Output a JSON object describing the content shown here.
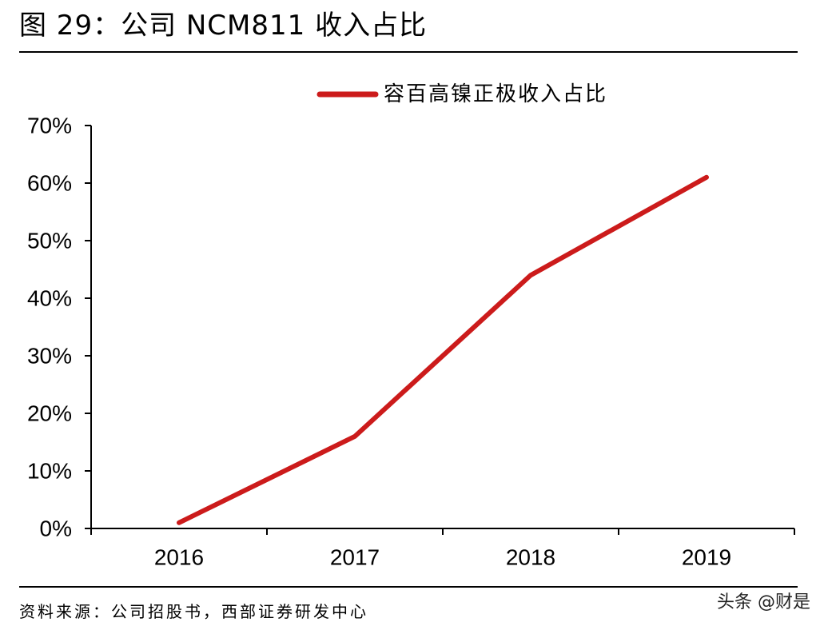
{
  "figure": {
    "title": "图 29：公司 NCM811 收入占比",
    "source": "资料来源：公司招股书，西部证券研发中心",
    "watermark": "头条 @财是"
  },
  "chart_data": {
    "type": "line",
    "title": "",
    "xlabel": "",
    "ylabel": "",
    "categories": [
      "2016",
      "2017",
      "2018",
      "2019"
    ],
    "ylim": [
      0,
      0.7
    ],
    "y_ticks": [
      0,
      0.1,
      0.2,
      0.3,
      0.4,
      0.5,
      0.6,
      0.7
    ],
    "y_tick_labels": [
      "0%",
      "10%",
      "20%",
      "30%",
      "40%",
      "50%",
      "60%",
      "70%"
    ],
    "series": [
      {
        "name": "容百高镍正极收入占比",
        "values": [
          0.01,
          0.16,
          0.44,
          0.61
        ],
        "color": "#cc1b1b"
      }
    ],
    "legend_position": "top-center",
    "grid": false
  }
}
